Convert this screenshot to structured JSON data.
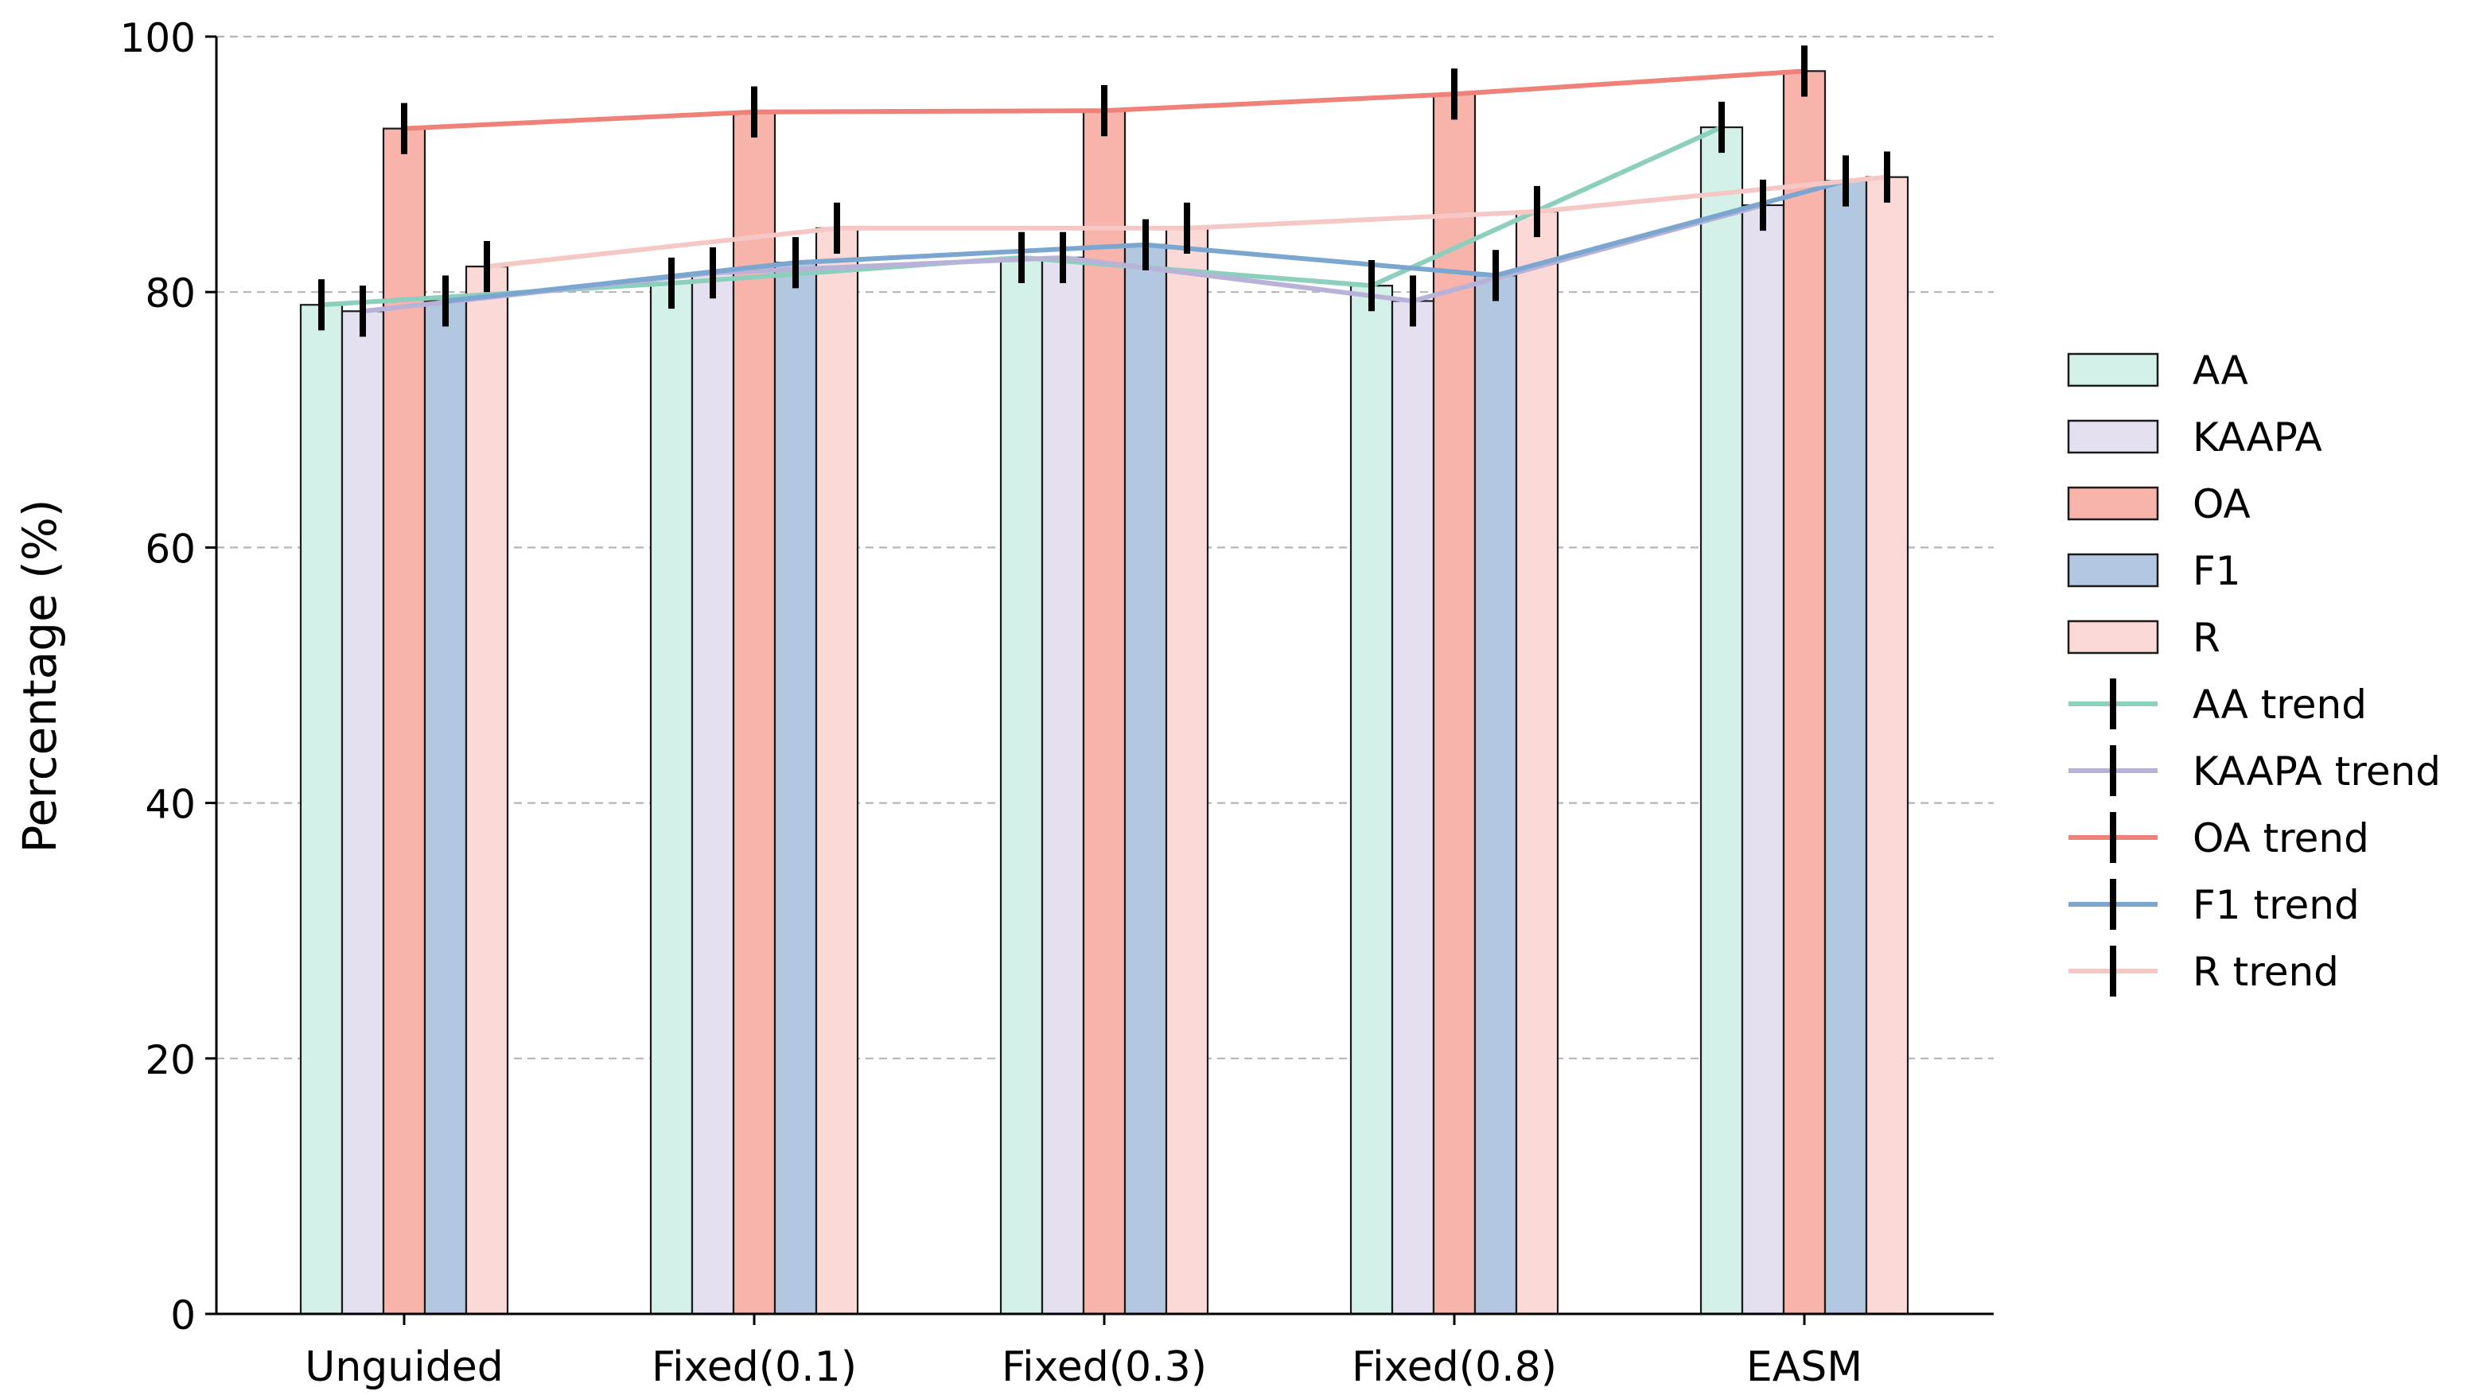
{
  "chart_data": {
    "type": "bar",
    "title": "",
    "xlabel": "",
    "ylabel": "Percentage (%)",
    "ylim": [
      0,
      100
    ],
    "yticks": [
      0,
      20,
      40,
      60,
      80,
      100
    ],
    "grid": "horizontal dashed",
    "legend_position": "right",
    "categories": [
      "Unguided",
      "Fixed(0.1)",
      "Fixed(0.3)",
      "Fixed(0.8)",
      "EASM"
    ],
    "series": [
      {
        "name": "AA",
        "trend_name": "AA trend",
        "color": "#d3f1e8",
        "trend_color": "#8dcfbd",
        "values": [
          79.0,
          80.7,
          82.7,
          80.5,
          92.9
        ],
        "errors": [
          2.0,
          2.0,
          2.0,
          2.0,
          2.0
        ]
      },
      {
        "name": "KAAPA",
        "trend_name": "KAAPA trend",
        "color": "#e4e0f0",
        "trend_color": "#b9b2d8",
        "values": [
          78.5,
          81.5,
          82.7,
          79.3,
          86.8
        ],
        "errors": [
          2.0,
          2.0,
          2.0,
          2.0,
          2.0
        ]
      },
      {
        "name": "OA",
        "trend_name": "OA trend",
        "color": "#f8b3ab",
        "trend_color": "#ef8278",
        "values": [
          92.8,
          94.1,
          94.2,
          95.5,
          97.3
        ],
        "errors": [
          2.0,
          2.0,
          2.0,
          2.0,
          2.0
        ]
      },
      {
        "name": "F1",
        "trend_name": "F1 trend",
        "color": "#b1c8e0",
        "trend_color": "#7ba6cf",
        "values": [
          79.3,
          82.3,
          83.7,
          81.3,
          88.7
        ],
        "errors": [
          2.0,
          2.0,
          2.0,
          2.0,
          2.0
        ]
      },
      {
        "name": "R",
        "trend_name": "R trend",
        "color": "#fbd9d7",
        "trend_color": "#f6c8c5",
        "values": [
          82.0,
          85.0,
          85.0,
          86.3,
          89.0
        ],
        "errors": [
          2.0,
          2.0,
          2.0,
          2.0,
          2.0
        ]
      }
    ]
  }
}
